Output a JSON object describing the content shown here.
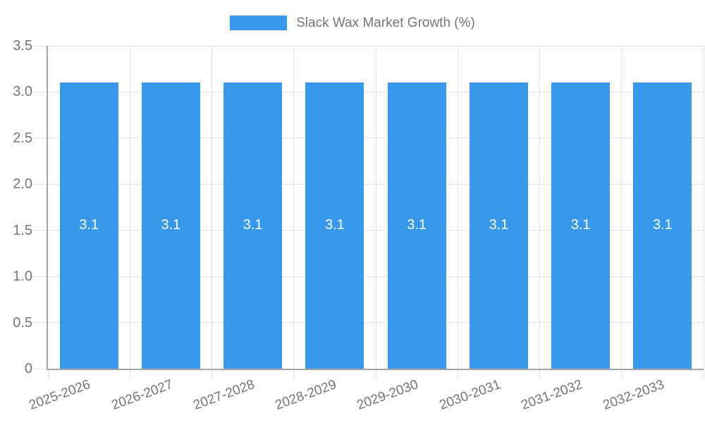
{
  "legend": {
    "label": "Slack Wax Market Growth (%)"
  },
  "chart_data": {
    "type": "bar",
    "title": "Slack Wax Market Growth (%)",
    "categories": [
      "2025-2026",
      "2026-2027",
      "2027-2028",
      "2028-2029",
      "2029-2030",
      "2030-2031",
      "2031-2032",
      "2032-2033"
    ],
    "values": [
      3.1,
      3.1,
      3.1,
      3.1,
      3.1,
      3.1,
      3.1,
      3.1
    ],
    "bar_labels": [
      "3.1",
      "3.1",
      "3.1",
      "3.1",
      "3.1",
      "3.1",
      "3.1",
      "3.1"
    ],
    "xlabel": "",
    "ylabel": "",
    "ylim": [
      0,
      3.5
    ],
    "y_ticks": [
      "0",
      "0.5",
      "1.0",
      "1.5",
      "2.0",
      "2.5",
      "3.0",
      "3.5"
    ],
    "grid": true,
    "legend_position": "top",
    "x_label_rotation_deg": -20
  },
  "colors": {
    "bar": "#3899EC",
    "grid": "#E2E2E2",
    "axis": "#A3A3A3",
    "text": "#757575",
    "value_label": "#FFFFFF",
    "background": "#FFFFFF"
  }
}
